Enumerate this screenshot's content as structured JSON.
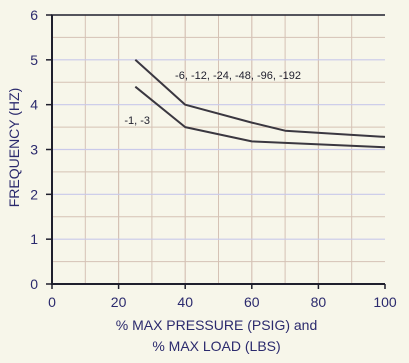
{
  "chart_data": {
    "type": "line",
    "title": "",
    "xlabel": "% MAX PRESSURE (PSIG) and",
    "xlabel_line2": "% MAX LOAD (LBS)",
    "ylabel": "FREQUENCY (HZ)",
    "xlim": [
      0,
      100
    ],
    "ylim": [
      0,
      6
    ],
    "x_ticks": [
      "0",
      "20",
      "40",
      "60",
      "80",
      "100"
    ],
    "y_ticks": [
      "0",
      "1",
      "2",
      "3",
      "4",
      "5",
      "6"
    ],
    "grid": true,
    "series": [
      {
        "name": "-6, -12, -24, -48, -96, -192",
        "x": [
          25,
          40,
          60,
          70,
          100
        ],
        "y": [
          5.0,
          4.0,
          3.6,
          3.42,
          3.28
        ]
      },
      {
        "name": "-1, -3",
        "x": [
          25,
          40,
          60,
          100
        ],
        "y": [
          4.4,
          3.5,
          3.18,
          3.05
        ]
      }
    ]
  },
  "colors": {
    "background": "#f7f6ea",
    "grid_major": "#d5c2b5",
    "grid_minor": "#c9c9ea",
    "axis": "#1f1f2d",
    "line": "#3a3740",
    "text": "#2b2a6d"
  }
}
